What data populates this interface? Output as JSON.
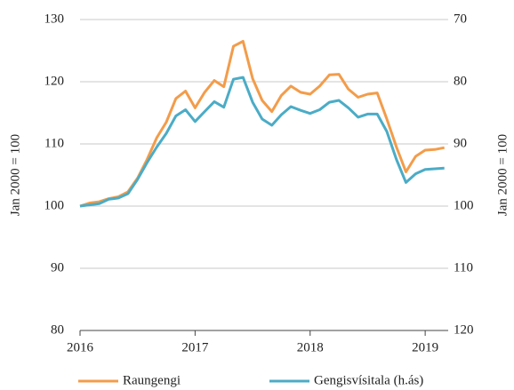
{
  "chart_data": {
    "type": "line",
    "x": [
      2016,
      2016.083,
      2016.167,
      2016.25,
      2016.333,
      2016.417,
      2016.5,
      2016.583,
      2016.667,
      2016.75,
      2016.833,
      2016.917,
      2017,
      2017.083,
      2017.167,
      2017.25,
      2017.333,
      2017.417,
      2017.5,
      2017.583,
      2017.667,
      2017.75,
      2017.833,
      2017.917,
      2018,
      2018.083,
      2018.167,
      2018.25,
      2018.333,
      2018.417,
      2018.5,
      2018.583,
      2018.667,
      2018.75,
      2018.833,
      2018.917,
      2019,
      2019.083,
      2019.167
    ],
    "series": [
      {
        "name": "Raungengi",
        "color": "#f39c4a",
        "values": [
          100,
          100.5,
          100.7,
          101.2,
          101.5,
          102.3,
          104.5,
          107.5,
          111,
          113.5,
          117.3,
          118.5,
          115.8,
          118.3,
          120.2,
          119.2,
          125.7,
          126.5,
          120.5,
          117,
          115.2,
          117.8,
          119.3,
          118.3,
          118,
          119.3,
          121.1,
          121.2,
          118.8,
          117.5,
          118,
          118.2,
          114,
          109.5,
          105.5,
          108,
          109,
          109.1,
          109.4
        ]
      },
      {
        "name": "Gengisvísitala (h.ás)",
        "color": "#4bacc6",
        "axis": "y2",
        "values": [
          100,
          99.8,
          99.6,
          98.9,
          98.7,
          98,
          95.7,
          93,
          90.5,
          88.3,
          85.5,
          84.5,
          86.4,
          84.8,
          83.2,
          84.1,
          79.6,
          79.3,
          83.3,
          86,
          87,
          85.3,
          84,
          84.6,
          85.1,
          84.5,
          83.3,
          83,
          84.2,
          85.7,
          85.2,
          85.2,
          88,
          92.5,
          96.2,
          94.8,
          94.1,
          94,
          93.9
        ]
      }
    ],
    "xlim": [
      2016,
      2019.2
    ],
    "xticks": [
      2016,
      2017,
      2018,
      2019
    ],
    "ylim": [
      80,
      130
    ],
    "yticks": [
      80,
      90,
      100,
      110,
      120,
      130
    ],
    "y2lim": [
      120,
      70
    ],
    "y2ticks": [
      70,
      80,
      90,
      100,
      110,
      120
    ],
    "ylabel": "Jan 2000  = 100",
    "y2label": "Jan 2000  = 100",
    "grid": true,
    "legend": "bottom"
  }
}
